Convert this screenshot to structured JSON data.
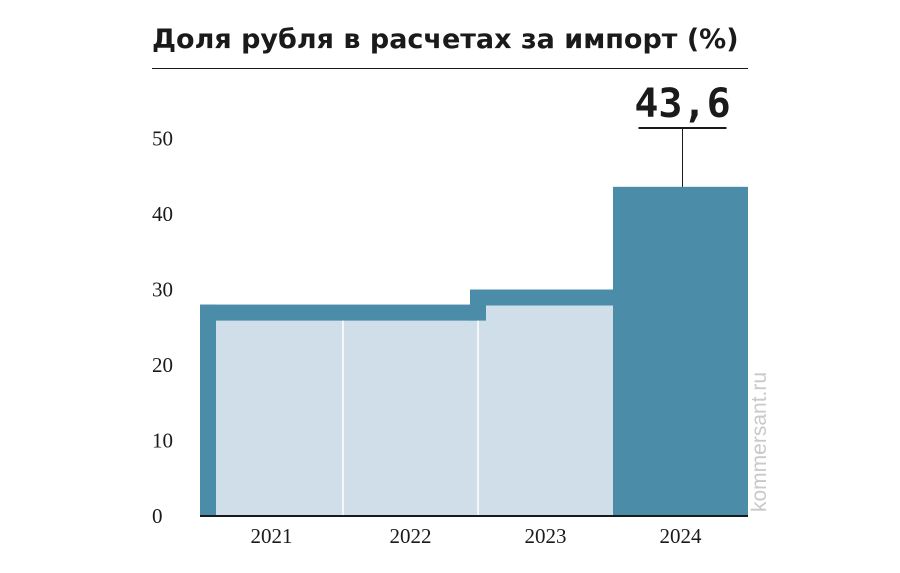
{
  "chart_data": {
    "type": "bar",
    "title": "Доля рубля в расчетах за импорт (%)",
    "categories": [
      "2021",
      "2022",
      "2023",
      "2024"
    ],
    "values": [
      28,
      28,
      30,
      43.6
    ],
    "highlight_label": "43,6",
    "yticks": [
      "0",
      "10",
      "20",
      "30",
      "40",
      "50"
    ],
    "ylim": [
      0,
      55
    ],
    "grid": false
  },
  "watermark": "kommersant.ru",
  "colors": {
    "bar_fill": "#4b8ca9",
    "bar_light": "#cfdee9",
    "text": "#1a1a1a"
  }
}
